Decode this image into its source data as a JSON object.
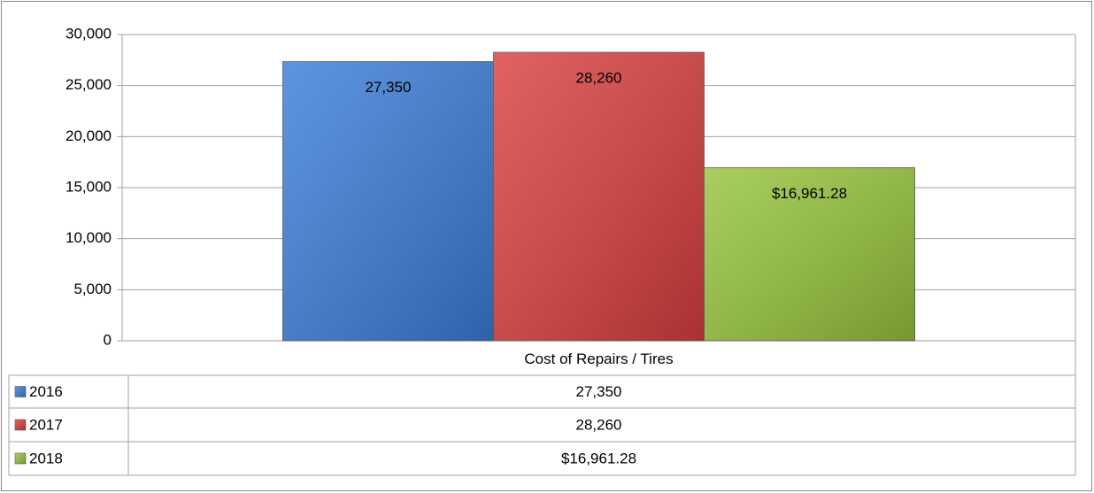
{
  "chart_data": {
    "type": "bar",
    "categories": [
      "Cost of Repairs / Tires"
    ],
    "series": [
      {
        "name": "2016",
        "color": "#3b7dd8",
        "values": [
          27350
        ],
        "value_labels": [
          "27,350"
        ]
      },
      {
        "name": "2017",
        "color": "#d93f3f",
        "values": [
          28260
        ],
        "value_labels": [
          "28,260"
        ]
      },
      {
        "name": "2018",
        "color": "#96c43c",
        "values": [
          16961.28
        ],
        "value_labels": [
          "$16,961.28"
        ]
      }
    ],
    "ylim": [
      0,
      30000
    ],
    "yticks": [
      0,
      {
        "value": 5000,
        "label": "5,000"
      },
      {
        "value": 10000,
        "label": "10,000"
      },
      {
        "value": 15000,
        "label": "15,000"
      },
      {
        "value": 20000,
        "label": "20,000"
      },
      {
        "value": 25000,
        "label": "25,000"
      },
      {
        "value": 30000,
        "label": "30,000"
      }
    ],
    "grid": true,
    "data_table": true
  }
}
